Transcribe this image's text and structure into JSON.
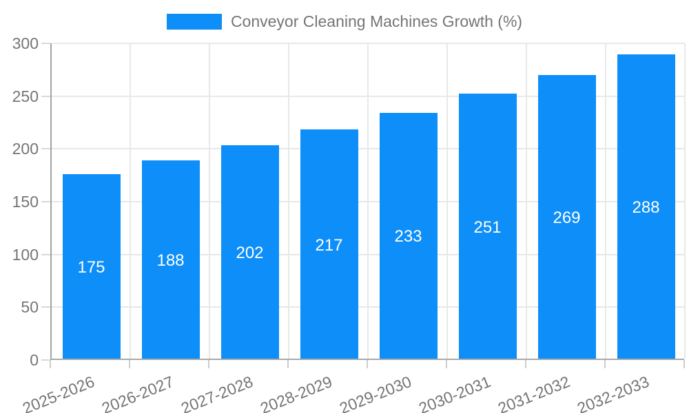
{
  "legend": {
    "label": "Conveyor Cleaning Machines Growth (%)"
  },
  "chart_data": {
    "type": "bar",
    "title": "Conveyor Cleaning Machines Growth (%)",
    "series_name": "Conveyor Cleaning Machines Growth (%)",
    "categories": [
      "2025-2026",
      "2026-2027",
      "2027-2028",
      "2028-2029",
      "2029-2030",
      "2030-2031",
      "2031-2032",
      "2032-2033"
    ],
    "values": [
      175,
      188,
      202,
      217,
      233,
      251,
      269,
      288
    ],
    "bar_value_labels": [
      "175",
      "188",
      "202",
      "217",
      "233",
      "251",
      "269",
      "288"
    ],
    "xlabel": "",
    "ylabel": "",
    "ylim": [
      0,
      300
    ],
    "yticks": [
      0,
      50,
      100,
      150,
      200,
      250,
      300
    ],
    "grid": true,
    "legend_position": "top-center",
    "colors": {
      "bar": "#0d8ef8",
      "bar_value_text": "#ffffff",
      "axis_line": "#a3a3a3",
      "gridline": "#e8e8e8",
      "tick": "#cccccc",
      "axis_text": "#757575",
      "background": "#ffffff"
    }
  }
}
